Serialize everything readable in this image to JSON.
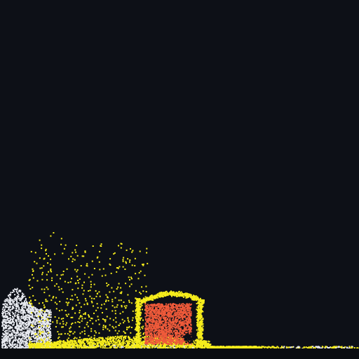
{
  "scene": {
    "background_color": "#0d1017",
    "floor_color": "#0a0c10",
    "particle_types": [
      {
        "name": "sand",
        "color": "#f5ec1c"
      },
      {
        "name": "snow",
        "color": "#e8eaf0"
      },
      {
        "name": "fire",
        "color": "#ef5a3a"
      }
    ]
  }
}
